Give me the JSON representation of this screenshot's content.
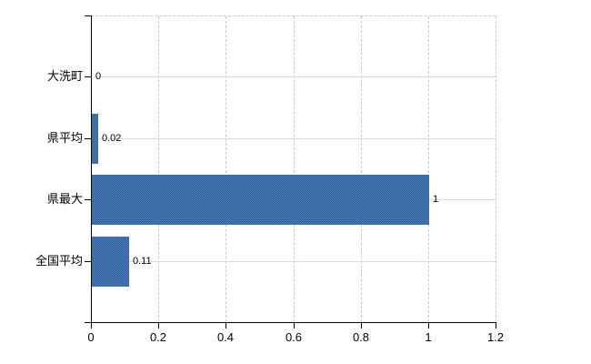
{
  "chart_data": {
    "type": "bar",
    "orientation": "horizontal",
    "title": "",
    "categories": [
      "大洗町",
      "県平均",
      "県最大",
      "全国平均"
    ],
    "values": [
      0,
      0.02,
      1,
      0.11
    ],
    "value_labels": [
      "0",
      "0.02",
      "1",
      "0.11"
    ],
    "x_ticks": [
      0,
      0.2,
      0.4,
      0.6,
      0.8,
      1,
      1.2
    ],
    "x_tick_labels": [
      "0",
      "0.2",
      "0.4",
      "0.6",
      "0.8",
      "1",
      "1.2"
    ],
    "xlim": [
      0,
      1.2
    ],
    "grid": {
      "vertical": "dashed",
      "horizontal": "solid",
      "top_border": "dashed"
    },
    "legend": "none",
    "colors": {
      "bar": "#3e6fae",
      "bar_dither_light": "#4e7ab5",
      "bar_dither_dark": "#30619f",
      "vertical_gridline": "#cfc6cd",
      "horizontal_gridline": "#d8ded2",
      "axis": "#000000",
      "text": "#000000",
      "background": "#ffffff"
    }
  }
}
